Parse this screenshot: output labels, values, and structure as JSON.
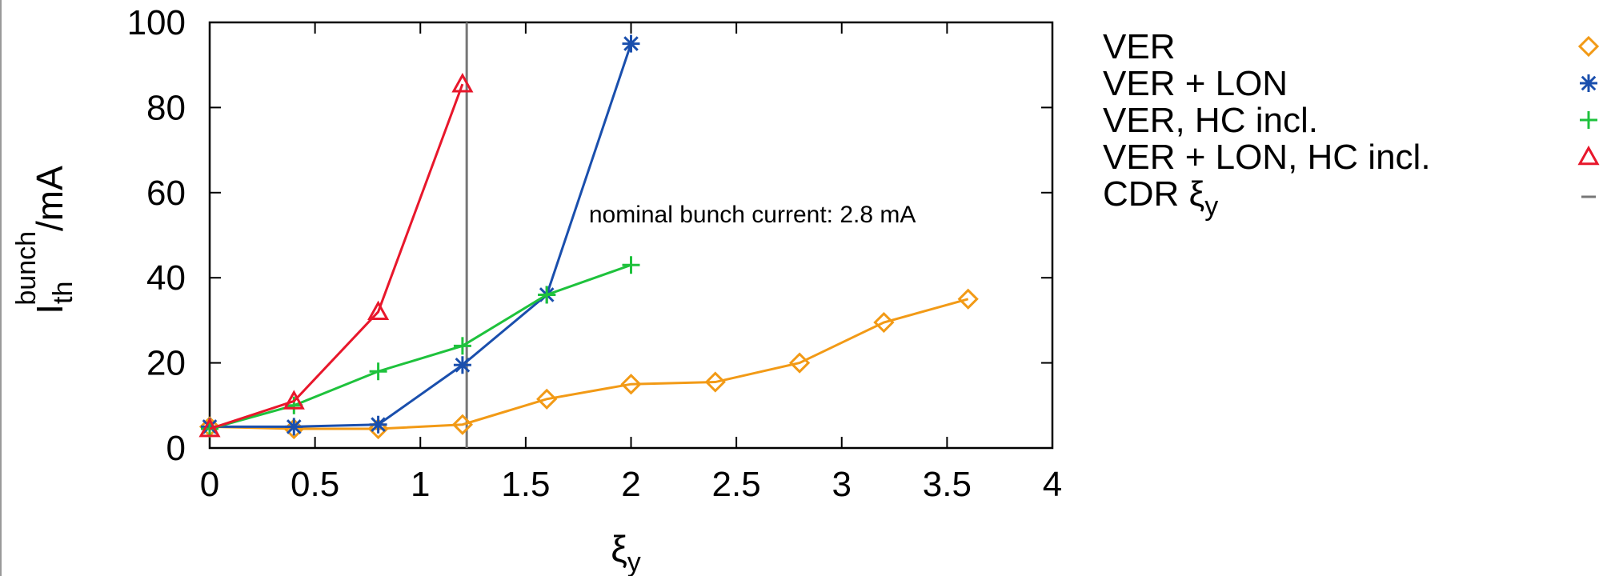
{
  "chart_data": {
    "type": "line",
    "xlabel": {
      "main": "ξ",
      "sub": "y"
    },
    "ylabel": {
      "main": "I",
      "sub": "th",
      "sup": "bunch",
      "unit": "/mA"
    },
    "xlim": [
      0,
      4
    ],
    "ylim": [
      0,
      100
    ],
    "x_ticks": [
      "0",
      "0.5",
      "1",
      "1.5",
      "2",
      "2.5",
      "3",
      "3.5",
      "4"
    ],
    "x_tick_values": [
      0,
      0.5,
      1,
      1.5,
      2,
      2.5,
      3,
      3.5,
      4
    ],
    "y_ticks": [
      "0",
      "20",
      "40",
      "60",
      "80",
      "100"
    ],
    "y_tick_values": [
      0,
      20,
      40,
      60,
      80,
      100
    ],
    "grid": false,
    "legend_position": "outside-right",
    "series": [
      {
        "name": "VER",
        "color": "#f29a16",
        "marker": "diamond",
        "x": [
          0,
          0.4,
          0.8,
          1.2,
          1.6,
          2.0,
          2.4,
          2.8,
          3.2,
          3.6
        ],
        "y": [
          5,
          4.5,
          4.5,
          5.5,
          11.5,
          15,
          15.5,
          20,
          29.5,
          35
        ]
      },
      {
        "name": "VER + LON",
        "color": "#1a4fad",
        "marker": "asterisk",
        "x": [
          0,
          0.4,
          0.8,
          1.2,
          1.6,
          2.0
        ],
        "y": [
          5,
          5,
          5.5,
          19.5,
          36,
          95
        ]
      },
      {
        "name": "VER, HC incl.",
        "color": "#1ec23c",
        "marker": "plus",
        "x": [
          0,
          0.4,
          0.8,
          1.2,
          1.6,
          2.0
        ],
        "y": [
          4.5,
          10,
          18,
          24,
          36,
          43
        ]
      },
      {
        "name": "VER + LON, HC incl.",
        "color": "#e8172b",
        "marker": "triangle",
        "x": [
          0,
          0.4,
          0.8,
          1.2
        ],
        "y": [
          4.5,
          11,
          32,
          85.5
        ]
      }
    ],
    "reference_line": {
      "name": {
        "main": "CDR ξ",
        "sub": "y"
      },
      "orientation": "vertical",
      "x": 1.22,
      "color": "#777777"
    },
    "annotation": {
      "text": "nominal bunch current: 2.8 mA",
      "x": 1.8,
      "y": 53
    }
  }
}
